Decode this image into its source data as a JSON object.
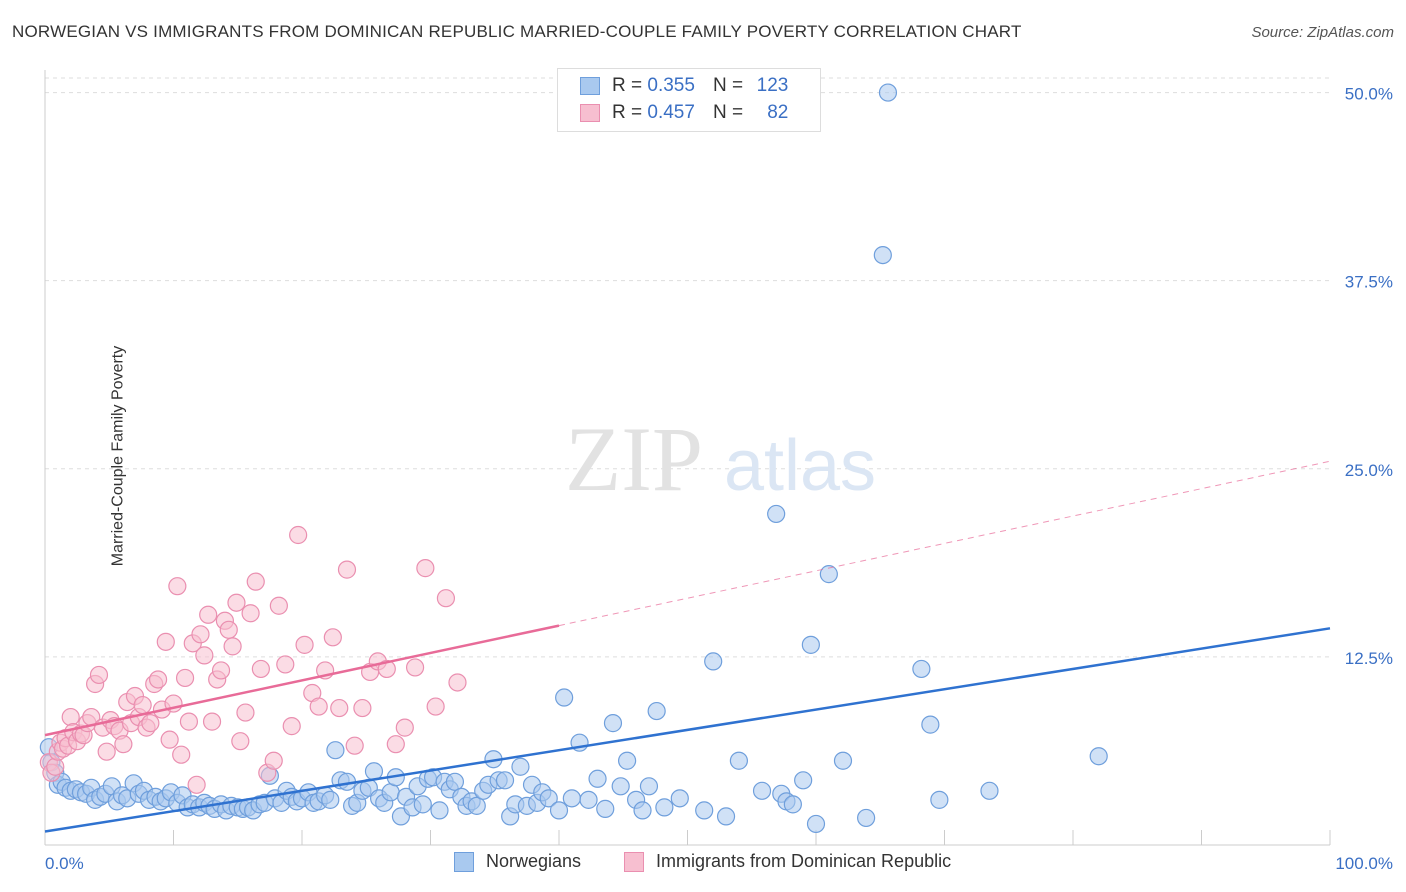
{
  "title": "NORWEGIAN VS IMMIGRANTS FROM DOMINICAN REPUBLIC MARRIED-COUPLE FAMILY POVERTY CORRELATION CHART",
  "source": "Source: ZipAtlas.com",
  "watermark": {
    "zip": "ZIP",
    "atlas": "atlas"
  },
  "legend": {
    "r_label": "R =",
    "n_label": "N =",
    "rows": [
      {
        "r": "0.355",
        "n": "123",
        "color": "#a8c8f0",
        "border": "#6b9be0"
      },
      {
        "r": "0.457",
        "n": "82",
        "color": "#f8c0d0",
        "border": "#e890b0"
      }
    ]
  },
  "bottom_legend": [
    "Norwegians",
    "Immigrants from Dominican Republic"
  ],
  "colors": {
    "blue_fill": "#a9c9ef",
    "blue_stroke": "#6f9fdc",
    "blue_line": "#2f72d0",
    "pink_fill": "#f7bfd0",
    "pink_stroke": "#ea8fb0",
    "pink_line": "#e86b98",
    "grid": "#dddddd",
    "tick_label": "#3a6fc4"
  },
  "chart_data": {
    "type": "scatter",
    "title": "NORWEGIAN VS IMMIGRANTS FROM DOMINICAN REPUBLIC MARRIED-COUPLE FAMILY POVERTY CORRELATION CHART",
    "xlabel": "",
    "ylabel": "Married-Couple Family Poverty",
    "xlim": [
      0,
      100
    ],
    "ylim": [
      0,
      51.5
    ],
    "x_tick_labels": [
      "0.0%",
      "100.0%"
    ],
    "y_ticks": [
      12.5,
      25.0,
      37.5,
      50.0
    ],
    "y_tick_labels": [
      "12.5%",
      "25.0%",
      "37.5%",
      "50.0%"
    ],
    "grid": true,
    "legend_position": "top-center",
    "series": [
      {
        "name": "Norwegians",
        "r": 0.355,
        "n": 123,
        "trend": {
          "x": [
            0,
            100
          ],
          "y": [
            0.9,
            14.4
          ],
          "dashed_from": null
        },
        "points": [
          [
            0.3,
            6.5
          ],
          [
            0.5,
            5.5
          ],
          [
            0.8,
            4.8
          ],
          [
            1.0,
            4.0
          ],
          [
            1.3,
            4.2
          ],
          [
            1.6,
            3.8
          ],
          [
            2.0,
            3.6
          ],
          [
            2.4,
            3.7
          ],
          [
            2.8,
            3.5
          ],
          [
            3.2,
            3.4
          ],
          [
            3.6,
            3.8
          ],
          [
            3.9,
            3.0
          ],
          [
            4.3,
            3.2
          ],
          [
            4.7,
            3.4
          ],
          [
            5.2,
            3.9
          ],
          [
            5.6,
            2.9
          ],
          [
            6.0,
            3.3
          ],
          [
            6.4,
            3.1
          ],
          [
            6.9,
            4.1
          ],
          [
            7.3,
            3.4
          ],
          [
            7.7,
            3.6
          ],
          [
            8.1,
            3.0
          ],
          [
            8.6,
            3.2
          ],
          [
            9.0,
            2.9
          ],
          [
            9.4,
            3.1
          ],
          [
            9.8,
            3.5
          ],
          [
            10.3,
            2.8
          ],
          [
            10.7,
            3.3
          ],
          [
            11.1,
            2.5
          ],
          [
            11.5,
            2.7
          ],
          [
            12.0,
            2.5
          ],
          [
            12.4,
            2.8
          ],
          [
            12.8,
            2.6
          ],
          [
            13.2,
            2.4
          ],
          [
            13.7,
            2.7
          ],
          [
            14.1,
            2.3
          ],
          [
            14.5,
            2.6
          ],
          [
            15.0,
            2.5
          ],
          [
            15.4,
            2.4
          ],
          [
            15.8,
            2.5
          ],
          [
            16.2,
            2.3
          ],
          [
            16.7,
            2.7
          ],
          [
            17.1,
            2.8
          ],
          [
            17.5,
            4.6
          ],
          [
            17.9,
            3.1
          ],
          [
            18.4,
            2.8
          ],
          [
            18.8,
            3.6
          ],
          [
            19.2,
            3.2
          ],
          [
            19.6,
            2.9
          ],
          [
            20.0,
            3.1
          ],
          [
            20.5,
            3.5
          ],
          [
            20.9,
            2.8
          ],
          [
            21.3,
            2.9
          ],
          [
            21.8,
            3.3
          ],
          [
            22.2,
            3.0
          ],
          [
            22.6,
            6.3
          ],
          [
            23.0,
            4.3
          ],
          [
            23.5,
            4.2
          ],
          [
            23.9,
            2.6
          ],
          [
            24.3,
            2.8
          ],
          [
            24.7,
            3.6
          ],
          [
            25.2,
            3.8
          ],
          [
            25.6,
            4.9
          ],
          [
            26.0,
            3.1
          ],
          [
            26.4,
            2.8
          ],
          [
            26.9,
            3.5
          ],
          [
            27.3,
            4.5
          ],
          [
            27.7,
            1.9
          ],
          [
            28.1,
            3.2
          ],
          [
            28.6,
            2.5
          ],
          [
            29.0,
            3.9
          ],
          [
            29.4,
            2.7
          ],
          [
            29.8,
            4.4
          ],
          [
            30.2,
            4.5
          ],
          [
            30.7,
            2.3
          ],
          [
            31.1,
            4.2
          ],
          [
            31.5,
            3.7
          ],
          [
            31.9,
            4.2
          ],
          [
            32.4,
            3.2
          ],
          [
            32.8,
            2.6
          ],
          [
            33.2,
            2.9
          ],
          [
            33.6,
            2.6
          ],
          [
            34.1,
            3.6
          ],
          [
            34.5,
            4.0
          ],
          [
            34.9,
            5.7
          ],
          [
            35.3,
            4.3
          ],
          [
            35.8,
            4.3
          ],
          [
            36.2,
            1.9
          ],
          [
            36.6,
            2.7
          ],
          [
            37.0,
            5.2
          ],
          [
            37.5,
            2.6
          ],
          [
            37.9,
            4.0
          ],
          [
            38.3,
            2.8
          ],
          [
            38.7,
            3.5
          ],
          [
            39.2,
            3.1
          ],
          [
            40.0,
            2.3
          ],
          [
            40.4,
            9.8
          ],
          [
            41.0,
            3.1
          ],
          [
            41.6,
            6.8
          ],
          [
            42.3,
            3.0
          ],
          [
            43.0,
            4.4
          ],
          [
            43.6,
            2.4
          ],
          [
            44.2,
            8.1
          ],
          [
            44.8,
            3.9
          ],
          [
            45.3,
            5.6
          ],
          [
            46.0,
            3.0
          ],
          [
            46.5,
            2.3
          ],
          [
            47.0,
            3.9
          ],
          [
            47.6,
            8.9
          ],
          [
            48.2,
            2.5
          ],
          [
            49.4,
            3.1
          ],
          [
            51.3,
            2.3
          ],
          [
            52.0,
            12.2
          ],
          [
            53.0,
            1.9
          ],
          [
            54.0,
            5.6
          ],
          [
            55.8,
            3.6
          ],
          [
            56.9,
            22.0
          ],
          [
            57.3,
            3.4
          ],
          [
            57.7,
            2.9
          ],
          [
            58.2,
            2.7
          ],
          [
            59.0,
            4.3
          ],
          [
            59.6,
            13.3
          ],
          [
            60.0,
            1.4
          ],
          [
            61.0,
            18.0
          ],
          [
            62.1,
            5.6
          ],
          [
            63.9,
            1.8
          ],
          [
            65.2,
            39.2
          ],
          [
            65.6,
            50.0
          ],
          [
            68.2,
            11.7
          ],
          [
            68.9,
            8.0
          ],
          [
            73.5,
            3.6
          ],
          [
            82.0,
            5.9
          ],
          [
            69.6,
            3.0
          ]
        ]
      },
      {
        "name": "Immigrants from Dominican Republic",
        "r": 0.457,
        "n": 82,
        "trend": {
          "x": [
            0,
            100
          ],
          "y": [
            7.3,
            25.5
          ],
          "dashed_from": 40
        },
        "points": [
          [
            0.3,
            5.5
          ],
          [
            0.5,
            4.8
          ],
          [
            0.8,
            5.2
          ],
          [
            1.0,
            6.2
          ],
          [
            1.2,
            6.8
          ],
          [
            1.4,
            6.4
          ],
          [
            1.6,
            7.1
          ],
          [
            1.8,
            6.6
          ],
          [
            2.0,
            8.5
          ],
          [
            2.2,
            7.5
          ],
          [
            2.5,
            6.9
          ],
          [
            2.8,
            7.4
          ],
          [
            3.0,
            7.3
          ],
          [
            3.3,
            8.1
          ],
          [
            3.6,
            8.5
          ],
          [
            3.9,
            10.7
          ],
          [
            4.2,
            11.3
          ],
          [
            4.5,
            7.8
          ],
          [
            4.8,
            6.2
          ],
          [
            5.1,
            8.3
          ],
          [
            5.4,
            7.9
          ],
          [
            5.8,
            7.6
          ],
          [
            6.1,
            6.7
          ],
          [
            6.4,
            9.5
          ],
          [
            6.7,
            8.1
          ],
          [
            7.0,
            9.9
          ],
          [
            7.3,
            8.5
          ],
          [
            7.6,
            9.3
          ],
          [
            7.9,
            7.8
          ],
          [
            8.2,
            8.1
          ],
          [
            8.5,
            10.7
          ],
          [
            8.8,
            11.0
          ],
          [
            9.1,
            9.0
          ],
          [
            9.4,
            13.5
          ],
          [
            9.7,
            7.0
          ],
          [
            10.0,
            9.4
          ],
          [
            10.3,
            17.2
          ],
          [
            10.6,
            6.0
          ],
          [
            10.9,
            11.1
          ],
          [
            11.2,
            8.2
          ],
          [
            11.5,
            13.4
          ],
          [
            11.8,
            4.0
          ],
          [
            12.1,
            14.0
          ],
          [
            12.4,
            12.6
          ],
          [
            12.7,
            15.3
          ],
          [
            13.0,
            8.2
          ],
          [
            13.4,
            11.0
          ],
          [
            13.7,
            11.6
          ],
          [
            14.0,
            14.9
          ],
          [
            14.3,
            14.3
          ],
          [
            14.6,
            13.2
          ],
          [
            14.9,
            16.1
          ],
          [
            15.2,
            6.9
          ],
          [
            15.6,
            8.8
          ],
          [
            16.0,
            15.4
          ],
          [
            16.4,
            17.5
          ],
          [
            16.8,
            11.7
          ],
          [
            17.3,
            4.8
          ],
          [
            17.8,
            5.6
          ],
          [
            18.2,
            15.9
          ],
          [
            18.7,
            12.0
          ],
          [
            19.2,
            7.9
          ],
          [
            19.7,
            20.6
          ],
          [
            20.2,
            13.3
          ],
          [
            20.8,
            10.1
          ],
          [
            21.3,
            9.2
          ],
          [
            21.8,
            11.6
          ],
          [
            22.4,
            13.8
          ],
          [
            22.9,
            9.1
          ],
          [
            23.5,
            18.3
          ],
          [
            24.1,
            6.6
          ],
          [
            24.7,
            9.1
          ],
          [
            25.3,
            11.5
          ],
          [
            25.9,
            12.2
          ],
          [
            26.6,
            11.7
          ],
          [
            27.3,
            6.7
          ],
          [
            28.0,
            7.8
          ],
          [
            28.8,
            11.8
          ],
          [
            29.6,
            18.4
          ],
          [
            30.4,
            9.2
          ],
          [
            31.2,
            16.4
          ],
          [
            32.1,
            10.8
          ]
        ]
      }
    ]
  }
}
